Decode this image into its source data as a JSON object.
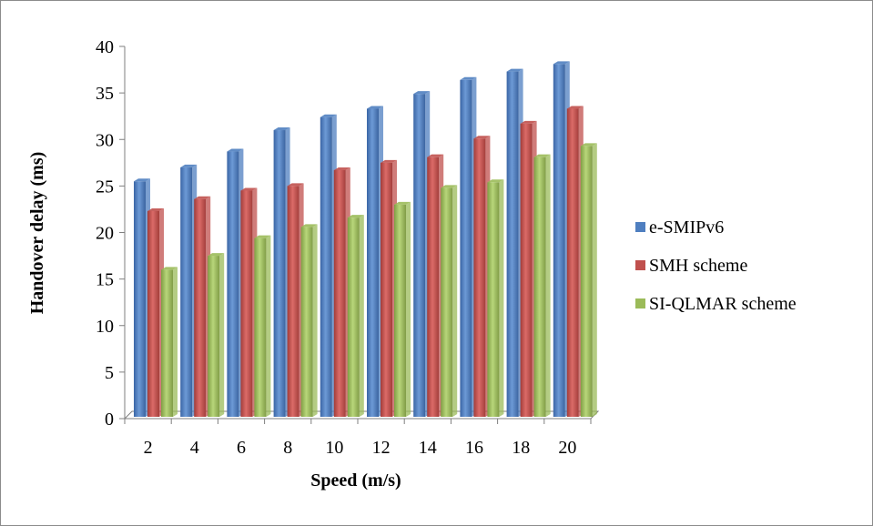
{
  "chart_data": {
    "type": "bar",
    "title": "",
    "xlabel": "Speed (m/s)",
    "ylabel": "Handover delay (ms)",
    "categories": [
      "2",
      "4",
      "6",
      "8",
      "10",
      "12",
      "14",
      "16",
      "18",
      "20"
    ],
    "yticks": [
      "0",
      "5",
      "10",
      "15",
      "20",
      "25",
      "30",
      "35",
      "40"
    ],
    "ylim": [
      0,
      40
    ],
    "grid": false,
    "legend_position": "right",
    "series": [
      {
        "name": "e-SMIPv6",
        "color": "#4f7fc0",
        "values": [
          25.5,
          27,
          28.7,
          31,
          32.4,
          33.3,
          34.9,
          36.4,
          37.3,
          38.1
        ]
      },
      {
        "name": "SMH scheme",
        "color": "#c0504d",
        "values": [
          22.3,
          23.6,
          24.5,
          25,
          26.7,
          27.5,
          28.1,
          30.1,
          31.7,
          33.3
        ]
      },
      {
        "name": "SI-QLMAR scheme",
        "color": "#9bbb59",
        "values": [
          16,
          17.5,
          19.4,
          20.6,
          21.6,
          23,
          24.8,
          25.4,
          28.1,
          29.3
        ]
      }
    ]
  }
}
